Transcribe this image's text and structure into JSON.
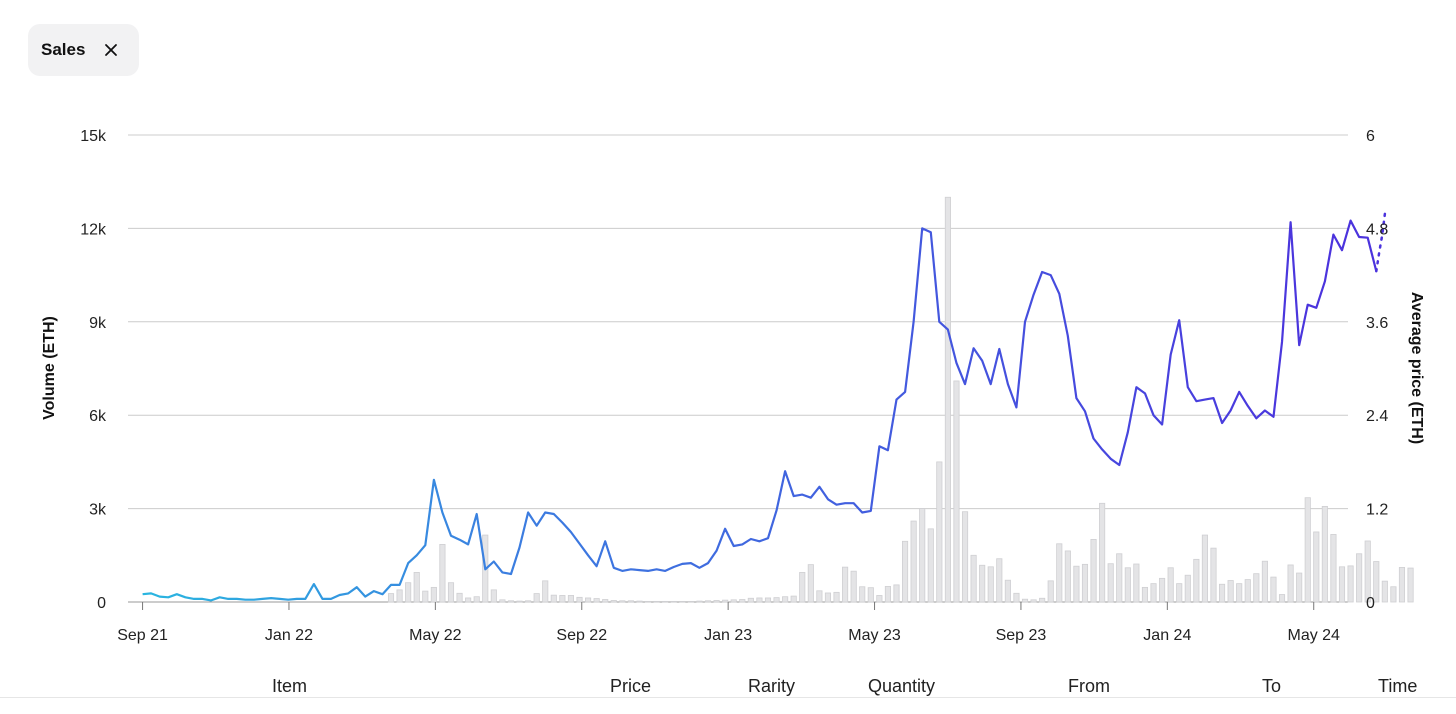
{
  "filter_chip": {
    "label": "Sales",
    "close_icon": "close-icon"
  },
  "table_headers": [
    "Item",
    "Price",
    "Rarity",
    "Quantity",
    "From",
    "To",
    "Time"
  ],
  "colors": {
    "line_start": "#29b6e0",
    "line_mid": "#3b7fe0",
    "line_end": "#4b33dd",
    "bar_fill": "#e4e4e6",
    "bar_stroke": "#cfcfd2",
    "grid": "#cccccc"
  },
  "chart_data": {
    "type": "bar+line",
    "title": "",
    "x_tick_labels": [
      "Sep 21",
      "Jan 22",
      "May 22",
      "Sep 22",
      "Jan 23",
      "May 23",
      "Sep 23",
      "Jan 24",
      "May 24"
    ],
    "x_range_weeks": [
      -1.7,
      140.7
    ],
    "y_left": {
      "label": "Volume (ETH)",
      "range": [
        0,
        15000
      ],
      "ticks": [
        0,
        3000,
        6000,
        9000,
        12000,
        15000
      ],
      "tick_labels": [
        "0",
        "3k",
        "6k",
        "9k",
        "12k",
        "15k"
      ]
    },
    "y_right": {
      "label": "Average price (ETH)",
      "range": [
        0,
        6
      ],
      "ticks": [
        0,
        1.2,
        2.4,
        3.6,
        4.8,
        6
      ],
      "tick_labels": [
        "0",
        "1.2",
        "2.4",
        "3.6",
        "4.8",
        "6"
      ]
    },
    "grid": true,
    "series": [
      {
        "name": "Volume (ETH)",
        "type": "bar",
        "axis": "left",
        "values": [
          0,
          0,
          0,
          0,
          0,
          0,
          0,
          0,
          0,
          0,
          0,
          0,
          0,
          0,
          0,
          0,
          0,
          0,
          0,
          0,
          0,
          0,
          0,
          0,
          0,
          0,
          0,
          0,
          0,
          270,
          390,
          620,
          950,
          350,
          470,
          1850,
          620,
          280,
          130,
          170,
          2150,
          390,
          70,
          40,
          30,
          40,
          270,
          680,
          220,
          210,
          210,
          150,
          130,
          110,
          80,
          50,
          40,
          40,
          30,
          20,
          20,
          20,
          20,
          20,
          20,
          30,
          40,
          50,
          60,
          70,
          80,
          120,
          130,
          130,
          140,
          170,
          190,
          950,
          1200,
          360,
          290,
          310,
          1120,
          990,
          490,
          460,
          210,
          500,
          550,
          1950,
          2600,
          3000,
          2350,
          4500,
          13000,
          7100,
          2900,
          1500,
          1180,
          1130,
          1390,
          700,
          280,
          90,
          70,
          120,
          680,
          1870,
          1640,
          1150,
          1210,
          2010,
          3170,
          1230,
          1550,
          1100,
          1220,
          470,
          590,
          760,
          1100,
          590,
          860,
          1370,
          2150,
          1730,
          570,
          690,
          590,
          720,
          910,
          1310,
          800,
          240,
          1190,
          930,
          3350,
          2250,
          3070,
          2170,
          1130,
          1160,
          1550,
          1960,
          1300,
          670,
          490,
          1110,
          1090
        ]
      },
      {
        "name": "Average price (ETH)",
        "type": "line",
        "axis": "right",
        "values": [
          0.1,
          0.11,
          0.07,
          0.06,
          0.1,
          0.06,
          0.04,
          0.04,
          0.02,
          0.06,
          0.04,
          0.04,
          0.03,
          0.03,
          0.04,
          0.05,
          0.04,
          0.03,
          0.04,
          0.04,
          0.23,
          0.04,
          0.04,
          0.09,
          0.11,
          0.19,
          0.07,
          0.14,
          0.1,
          0.22,
          0.22,
          0.5,
          0.6,
          0.73,
          1.57,
          1.15,
          0.85,
          0.8,
          0.74,
          1.13,
          0.42,
          0.52,
          0.38,
          0.36,
          0.7,
          1.15,
          0.98,
          1.15,
          1.13,
          1.02,
          0.9,
          0.75,
          0.6,
          0.46,
          0.78,
          0.44,
          0.4,
          0.42,
          0.41,
          0.4,
          0.42,
          0.4,
          0.45,
          0.49,
          0.5,
          0.44,
          0.5,
          0.66,
          0.94,
          0.72,
          0.74,
          0.81,
          0.78,
          0.82,
          1.18,
          1.68,
          1.36,
          1.38,
          1.34,
          1.48,
          1.32,
          1.25,
          1.27,
          1.27,
          1.15,
          1.17,
          2.0,
          1.95,
          2.6,
          2.7,
          3.6,
          4.8,
          4.75,
          3.6,
          3.5,
          3.07,
          2.8,
          3.26,
          3.1,
          2.8,
          3.25,
          2.8,
          2.5,
          3.6,
          3.95,
          4.24,
          4.2,
          3.96,
          3.42,
          2.62,
          2.45,
          2.1,
          1.96,
          1.84,
          1.76,
          2.18,
          2.76,
          2.68,
          2.4,
          2.28,
          3.18,
          3.62,
          2.76,
          2.58,
          2.6,
          2.62,
          2.3,
          2.46,
          2.7,
          2.52,
          2.36,
          2.46,
          2.38,
          3.34,
          4.88,
          3.3,
          3.82,
          3.78,
          4.12,
          4.72,
          4.52,
          4.9,
          4.69,
          4.68,
          4.25
        ],
        "projected_values": [
          4.25,
          4.5,
          4.72,
          5.03
        ]
      }
    ]
  }
}
